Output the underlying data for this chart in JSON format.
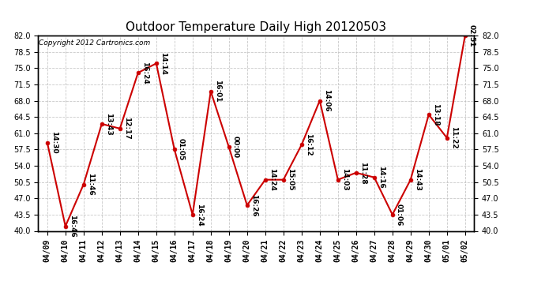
{
  "title": "Outdoor Temperature Daily High 20120503",
  "copyright": "Copyright 2012 Cartronics.com",
  "x_labels": [
    "04/09",
    "04/10",
    "04/11",
    "04/12",
    "04/13",
    "04/14",
    "04/15",
    "04/16",
    "04/17",
    "04/18",
    "04/19",
    "04/20",
    "04/21",
    "04/22",
    "04/23",
    "04/24",
    "04/25",
    "04/26",
    "04/27",
    "04/28",
    "04/29",
    "04/30",
    "05/01",
    "05/02"
  ],
  "y_values": [
    59.0,
    41.0,
    50.0,
    63.0,
    62.0,
    74.0,
    76.0,
    57.5,
    43.5,
    70.0,
    58.0,
    45.5,
    51.0,
    51.0,
    58.5,
    68.0,
    51.0,
    52.5,
    51.5,
    43.5,
    51.0,
    65.0,
    60.0,
    82.0
  ],
  "point_labels": [
    "14:30",
    "16:46",
    "11:46",
    "13:43",
    "12:17",
    "16:24",
    "14:14",
    "01:05",
    "16:24",
    "16:01",
    "00:00",
    "16:26",
    "14:24",
    "15:05",
    "16:12",
    "14:06",
    "14:03",
    "11:28",
    "14:16",
    "01:06",
    "14:43",
    "13:18",
    "11:22",
    "02:51"
  ],
  "line_color": "#cc0000",
  "marker_color": "#cc0000",
  "background_color": "#ffffff",
  "plot_bg_color": "#ffffff",
  "grid_color": "#bbbbbb",
  "ylim_min": 40.0,
  "ylim_max": 82.0,
  "ytick_values": [
    40.0,
    43.5,
    47.0,
    50.5,
    54.0,
    57.5,
    61.0,
    64.5,
    68.0,
    71.5,
    75.0,
    78.5,
    82.0
  ],
  "title_fontsize": 11,
  "label_fontsize": 6.5,
  "tick_fontsize": 7,
  "copyright_fontsize": 6.5
}
